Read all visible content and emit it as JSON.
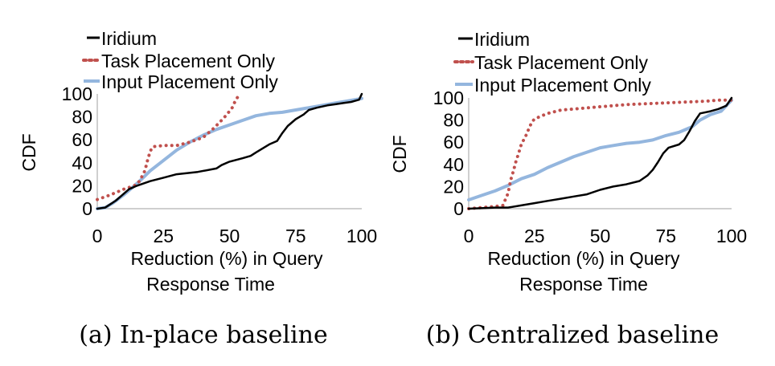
{
  "figure": {
    "captions": [
      "(a) In-place baseline",
      "(b) Centralized baseline"
    ]
  },
  "chart_data": [
    {
      "type": "line",
      "caption": "(a) In-place baseline",
      "xlabel_lines": [
        "Reduction (%) in Query",
        "Response Time"
      ],
      "ylabel": "CDF",
      "xlim": [
        0,
        100
      ],
      "ylim": [
        0,
        100
      ],
      "xticks": [
        0,
        25,
        50,
        75,
        100
      ],
      "yticks": [
        0,
        20,
        40,
        60,
        80,
        100
      ],
      "grid": false,
      "legend_position": "top-left (above plot)",
      "series": [
        {
          "name": "Iridium",
          "color": "#000000",
          "style": "solid",
          "points": [
            [
              0,
              0
            ],
            [
              3,
              1
            ],
            [
              7,
              7
            ],
            [
              10,
              13
            ],
            [
              12,
              17
            ],
            [
              15,
              20
            ],
            [
              20,
              24
            ],
            [
              25,
              27
            ],
            [
              30,
              30
            ],
            [
              38,
              32
            ],
            [
              45,
              35
            ],
            [
              47,
              38
            ],
            [
              50,
              41
            ],
            [
              55,
              44
            ],
            [
              58,
              46
            ],
            [
              60,
              49
            ],
            [
              65,
              56
            ],
            [
              68,
              59
            ],
            [
              70,
              66
            ],
            [
              72,
              72
            ],
            [
              75,
              78
            ],
            [
              78,
              82
            ],
            [
              80,
              86
            ],
            [
              83,
              88
            ],
            [
              87,
              90
            ],
            [
              90,
              91
            ],
            [
              93,
              92
            ],
            [
              96,
              93
            ],
            [
              99,
              95
            ],
            [
              100,
              100
            ]
          ]
        },
        {
          "name": "Task Placement Only",
          "color": "#c0504d",
          "style": "dotted",
          "points": [
            [
              0,
              8
            ],
            [
              5,
              12
            ],
            [
              10,
              17
            ],
            [
              14,
              20
            ],
            [
              16,
              24
            ],
            [
              18,
              33
            ],
            [
              19,
              42
            ],
            [
              20,
              50
            ],
            [
              21,
              54
            ],
            [
              25,
              55
            ],
            [
              30,
              55
            ],
            [
              35,
              58
            ],
            [
              40,
              62
            ],
            [
              44,
              70
            ],
            [
              47,
              77
            ],
            [
              49,
              82
            ],
            [
              51,
              88
            ],
            [
              52,
              93
            ],
            [
              53,
              97
            ],
            [
              54,
              100
            ]
          ]
        },
        {
          "name": "Input Placement Only",
          "color": "#94b6de",
          "style": "solid",
          "points": [
            [
              0,
              0
            ],
            [
              3,
              1
            ],
            [
              6,
              5
            ],
            [
              10,
              12
            ],
            [
              13,
              18
            ],
            [
              16,
              24
            ],
            [
              20,
              33
            ],
            [
              25,
              42
            ],
            [
              30,
              51
            ],
            [
              35,
              58
            ],
            [
              40,
              64
            ],
            [
              45,
              69
            ],
            [
              50,
              73
            ],
            [
              55,
              77
            ],
            [
              60,
              81
            ],
            [
              65,
              83
            ],
            [
              70,
              84
            ],
            [
              75,
              86
            ],
            [
              80,
              88
            ],
            [
              85,
              90
            ],
            [
              90,
              92
            ],
            [
              95,
              94
            ],
            [
              100,
              96
            ]
          ]
        }
      ]
    },
    {
      "type": "line",
      "caption": "(b) Centralized baseline",
      "xlabel_lines": [
        "Reduction (%) in Query",
        "Response Time"
      ],
      "ylabel": "CDF",
      "xlim": [
        0,
        100
      ],
      "ylim": [
        0,
        100
      ],
      "xticks": [
        0,
        25,
        50,
        75,
        100
      ],
      "yticks": [
        0,
        20,
        40,
        60,
        80,
        100
      ],
      "grid": false,
      "legend_position": "top-left (above plot)",
      "series": [
        {
          "name": "Iridium",
          "color": "#000000",
          "style": "solid",
          "points": [
            [
              0,
              0
            ],
            [
              10,
              1
            ],
            [
              15,
              1
            ],
            [
              20,
              3
            ],
            [
              25,
              5
            ],
            [
              30,
              7
            ],
            [
              35,
              9
            ],
            [
              40,
              11
            ],
            [
              45,
              13
            ],
            [
              50,
              17
            ],
            [
              55,
              20
            ],
            [
              60,
              22
            ],
            [
              65,
              25
            ],
            [
              68,
              30
            ],
            [
              70,
              35
            ],
            [
              72,
              42
            ],
            [
              74,
              50
            ],
            [
              76,
              55
            ],
            [
              80,
              58
            ],
            [
              82,
              62
            ],
            [
              84,
              70
            ],
            [
              86,
              79
            ],
            [
              88,
              86
            ],
            [
              92,
              88
            ],
            [
              95,
              90
            ],
            [
              98,
              93
            ],
            [
              100,
              100
            ]
          ]
        },
        {
          "name": "Task Placement Only",
          "color": "#c0504d",
          "style": "dotted",
          "points": [
            [
              0,
              0
            ],
            [
              5,
              1
            ],
            [
              10,
              2
            ],
            [
              13,
              3
            ],
            [
              15,
              14
            ],
            [
              16,
              26
            ],
            [
              17,
              34
            ],
            [
              18,
              43
            ],
            [
              19,
              50
            ],
            [
              20,
              58
            ],
            [
              22,
              67
            ],
            [
              23,
              73
            ],
            [
              24,
              78
            ],
            [
              25,
              81
            ],
            [
              30,
              86
            ],
            [
              35,
              89
            ],
            [
              40,
              90
            ],
            [
              50,
              92
            ],
            [
              60,
              94
            ],
            [
              70,
              95
            ],
            [
              80,
              96
            ],
            [
              90,
              97
            ],
            [
              95,
              98
            ],
            [
              100,
              98
            ]
          ]
        },
        {
          "name": "Input Placement Only",
          "color": "#94b6de",
          "style": "solid",
          "points": [
            [
              0,
              8
            ],
            [
              5,
              12
            ],
            [
              10,
              16
            ],
            [
              15,
              21
            ],
            [
              20,
              27
            ],
            [
              25,
              31
            ],
            [
              30,
              37
            ],
            [
              35,
              42
            ],
            [
              40,
              47
            ],
            [
              45,
              51
            ],
            [
              50,
              55
            ],
            [
              55,
              57
            ],
            [
              60,
              59
            ],
            [
              65,
              60
            ],
            [
              70,
              62
            ],
            [
              75,
              66
            ],
            [
              80,
              69
            ],
            [
              85,
              74
            ],
            [
              88,
              80
            ],
            [
              92,
              85
            ],
            [
              96,
              88
            ],
            [
              100,
              98
            ]
          ]
        }
      ]
    }
  ]
}
